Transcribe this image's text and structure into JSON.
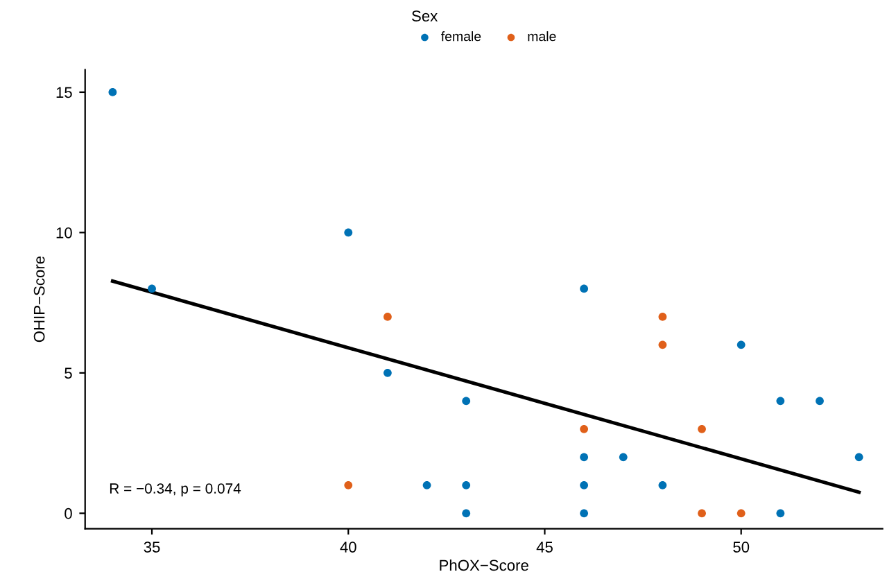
{
  "chart_data": {
    "type": "scatter",
    "xlabel": "PhOX−Score",
    "ylabel": "OHIP−Score",
    "legend_title": "Sex",
    "legend": "top",
    "xlim": [
      33.3,
      53.6
    ],
    "xticks": [
      35,
      40,
      45,
      50
    ],
    "ylim": [
      -0.55,
      15.8
    ],
    "yticks": [
      0,
      5,
      10,
      15
    ],
    "grid": false,
    "series": [
      {
        "name": "female",
        "color": "#0072b5",
        "marker": "circle",
        "x": [
          34,
          35,
          40,
          41,
          42,
          43,
          43,
          43,
          46,
          46,
          46,
          46,
          47,
          48,
          50,
          51,
          51,
          52,
          53
        ],
        "values": [
          15,
          8,
          10,
          5,
          1,
          4,
          1,
          0,
          8,
          2,
          1,
          0,
          2,
          1,
          6,
          4,
          0,
          4,
          2
        ]
      },
      {
        "name": "male",
        "color": "#e0601a",
        "marker": "circle",
        "x": [
          40,
          41,
          46,
          48,
          48,
          49,
          49,
          50
        ],
        "values": [
          1,
          7,
          3,
          7,
          6,
          3,
          0,
          0
        ]
      },
      {
        "type": "line",
        "color": "#000000",
        "x": [
          34,
          53
        ],
        "values": [
          8.27,
          0.75
        ]
      }
    ],
    "annotations": [
      "R = −0.34, p = 0.074"
    ]
  }
}
